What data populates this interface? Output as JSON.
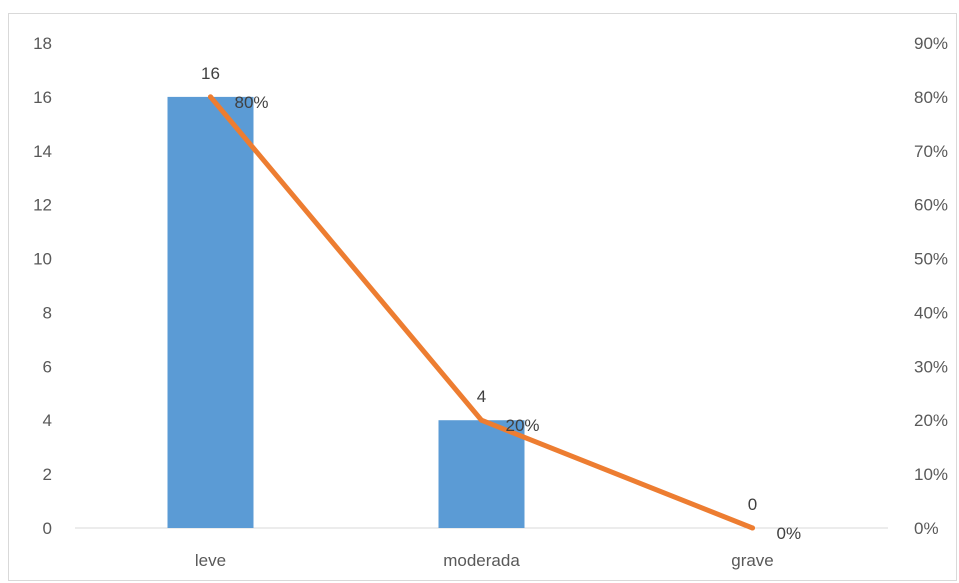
{
  "chart_data": {
    "type": "bar",
    "title": "",
    "xlabel": "",
    "ylabel": "",
    "categories": [
      "leve",
      "moderada",
      "grave"
    ],
    "series": [
      {
        "type": "bar",
        "axis": "left",
        "values": [
          16,
          4,
          0
        ],
        "labels": [
          "16",
          "4",
          "0"
        ],
        "color": "#5b9bd5"
      },
      {
        "type": "line",
        "axis": "right",
        "values": [
          80,
          20,
          0
        ],
        "labels": [
          "80%",
          "20%",
          "0%"
        ],
        "color": "#ed7d31"
      }
    ],
    "ylim": [
      0,
      18
    ],
    "yticks": [
      "0",
      "2",
      "4",
      "6",
      "8",
      "10",
      "12",
      "14",
      "16",
      "18"
    ],
    "y2lim": [
      0,
      90
    ],
    "y2ticks": [
      "0%",
      "10%",
      "20%",
      "30%",
      "40%",
      "50%",
      "60%",
      "70%",
      "80%",
      "90%"
    ],
    "grid": false,
    "legend": "none"
  }
}
